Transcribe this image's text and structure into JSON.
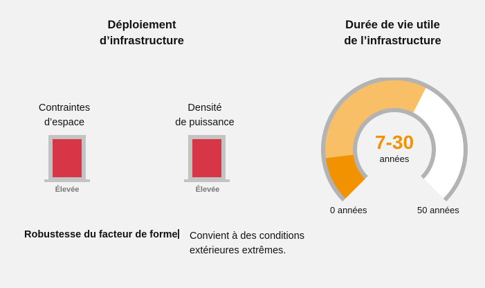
{
  "left_panel": {
    "title": [
      "Déploiement",
      "d’infrastructure"
    ],
    "metrics": [
      {
        "label": [
          "Contraintes",
          "d’espace"
        ],
        "level": "Élevée"
      },
      {
        "label": [
          "Densité",
          "de puissance"
        ],
        "level": "Élevée"
      }
    ],
    "robustness": {
      "label": "Robustesse du facteur de forme",
      "separator": "|",
      "value": [
        "Convient à des conditions",
        "extérieures extrêmes."
      ]
    }
  },
  "right_panel": {
    "title": [
      "Durée de vie utile",
      "de l’infrastructure"
    ],
    "gauge": {
      "value_text": "7-30",
      "unit": "années",
      "min_label": "0 années",
      "max_label": "50 années",
      "min": 0,
      "max": 50,
      "range_low": 7,
      "range_high": 30
    }
  },
  "colors": {
    "background": "#f2f2f2",
    "bar_fill": "#d63646",
    "bar_frame": "#c3c3c3",
    "gauge_track": "#b3b3b3",
    "gauge_orange": "#f39200",
    "gauge_light_orange": "#f9bf66",
    "gauge_white": "#ffffff"
  }
}
